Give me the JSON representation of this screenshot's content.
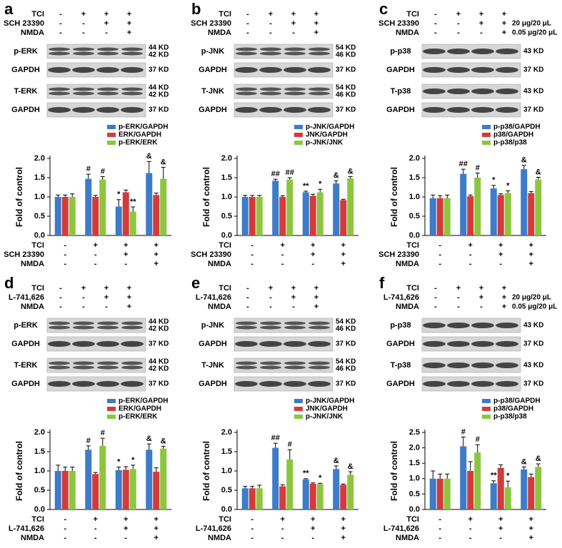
{
  "chart_data": [
    {
      "type": "bar",
      "panel": "a",
      "y_label": "Fold of control",
      "treatments": [
        {
          "name": "TCI",
          "signs": [
            "-",
            "+",
            "+",
            "+"
          ]
        },
        {
          "name": "SCH 23390",
          "signs": [
            "-",
            "-",
            "+",
            "+"
          ]
        },
        {
          "name": "NMDA",
          "signs": [
            "-",
            "-",
            "-",
            "+"
          ]
        }
      ],
      "blots": [
        {
          "label": "p-ERK",
          "kd": [
            "44 KD",
            "42 KD"
          ]
        },
        {
          "label": "GAPDH",
          "kd": [
            "37 KD"
          ]
        },
        {
          "label": "T-ERK",
          "kd": [
            "44 KD",
            "42 KD"
          ]
        },
        {
          "label": "GAPDH",
          "kd": [
            "37 KD"
          ]
        }
      ],
      "ylim": [
        0,
        2
      ],
      "yticks": [
        {
          "value": 0,
          "label": "0.0"
        },
        {
          "value": 0.5,
          "label": "0.5"
        },
        {
          "value": 1,
          "label": "1.0"
        },
        {
          "value": 1.5,
          "label": "1.5"
        },
        {
          "value": 2,
          "label": "2.0"
        }
      ],
      "series": [
        {
          "name": "p-ERK/GAPDH",
          "color": "#3d7cc9",
          "values": [
            1.0,
            1.47,
            0.75,
            1.62
          ],
          "errors": [
            0.05,
            0.12,
            0.18,
            0.3
          ],
          "markers": [
            null,
            "#",
            "*",
            "&"
          ]
        },
        {
          "name": "ERK/GAPDH",
          "color": "#d33b3b",
          "values": [
            1.0,
            1.0,
            1.12,
            1.05
          ],
          "errors": [
            0.05,
            0.04,
            0.06,
            0.05
          ],
          "markers": [
            null,
            null,
            null,
            null
          ]
        },
        {
          "name": "p-ERK/ERK",
          "color": "#8cc63f",
          "values": [
            1.0,
            1.45,
            0.62,
            1.47
          ],
          "errors": [
            0.08,
            0.08,
            0.12,
            0.3
          ],
          "markers": [
            null,
            "#",
            "**",
            "&"
          ]
        }
      ]
    },
    {
      "type": "bar",
      "panel": "b",
      "y_label": "Fold of control",
      "treatments": [
        {
          "name": "TCI",
          "signs": [
            "-",
            "+",
            "+",
            "+"
          ]
        },
        {
          "name": "SCH 23390",
          "signs": [
            "-",
            "-",
            "+",
            "+"
          ]
        },
        {
          "name": "NMDA",
          "signs": [
            "-",
            "-",
            "-",
            "+"
          ]
        }
      ],
      "blots": [
        {
          "label": "p-JNK",
          "kd": [
            "54 KD",
            "46 KD"
          ]
        },
        {
          "label": "GAPDH",
          "kd": [
            "37 KD"
          ]
        },
        {
          "label": "T-JNK",
          "kd": [
            "54 KD",
            "46 KD"
          ]
        },
        {
          "label": "GAPDH",
          "kd": [
            "37 KD"
          ]
        }
      ],
      "ylim": [
        0,
        2
      ],
      "yticks": [
        {
          "value": 0,
          "label": "0.0"
        },
        {
          "value": 0.5,
          "label": "0.5"
        },
        {
          "value": 1,
          "label": "1.0"
        },
        {
          "value": 1.5,
          "label": "1.5"
        },
        {
          "value": 2,
          "label": "2.0"
        }
      ],
      "series": [
        {
          "name": "p-JNK/GAPDH",
          "color": "#3d7cc9",
          "values": [
            1.0,
            1.42,
            1.12,
            1.35
          ],
          "errors": [
            0.04,
            0.04,
            0.03,
            0.07
          ],
          "markers": [
            null,
            "##",
            "**",
            "&"
          ]
        },
        {
          "name": "JNK/GAPDH",
          "color": "#d33b3b",
          "values": [
            1.0,
            1.0,
            1.03,
            0.92
          ],
          "errors": [
            0.04,
            0.03,
            0.04,
            0.02
          ],
          "markers": [
            null,
            null,
            null,
            null
          ]
        },
        {
          "name": "p-JNK/JNK",
          "color": "#8cc63f",
          "values": [
            1.0,
            1.45,
            1.12,
            1.48
          ],
          "errors": [
            0.04,
            0.05,
            0.08,
            0.05
          ],
          "markers": [
            null,
            "##",
            "*",
            "&"
          ]
        }
      ]
    },
    {
      "type": "bar",
      "panel": "c",
      "y_label": "Fold of control",
      "doses": [
        "20 μg/20 μL",
        "0.05 μg/20 μL"
      ],
      "treatments": [
        {
          "name": "TCI",
          "signs": [
            "-",
            "+",
            "+",
            "+"
          ]
        },
        {
          "name": "SCH 23390",
          "signs": [
            "-",
            "-",
            "+",
            "+"
          ]
        },
        {
          "name": "NMDA",
          "signs": [
            "-",
            "-",
            "-",
            "+"
          ]
        }
      ],
      "blots": [
        {
          "label": "p-p38",
          "kd": [
            "43 KD"
          ]
        },
        {
          "label": "GAPDH",
          "kd": [
            "37 KD"
          ]
        },
        {
          "label": "T-p38",
          "kd": [
            "43 KD"
          ]
        },
        {
          "label": "GAPDH",
          "kd": [
            "37 KD"
          ]
        }
      ],
      "ylim": [
        0,
        2
      ],
      "yticks": [
        {
          "value": 0,
          "label": "0.0"
        },
        {
          "value": 0.5,
          "label": "0.5"
        },
        {
          "value": 1,
          "label": "1.0"
        },
        {
          "value": 1.5,
          "label": "1.5"
        },
        {
          "value": 2,
          "label": "2.0"
        }
      ],
      "series": [
        {
          "name": "p-p38/GAPDH",
          "color": "#3d7cc9",
          "values": [
            0.97,
            1.6,
            1.22,
            1.72
          ],
          "errors": [
            0.08,
            0.12,
            0.08,
            0.1
          ],
          "markers": [
            null,
            "##",
            "*",
            "&"
          ]
        },
        {
          "name": "p38/GAPDH",
          "color": "#d33b3b",
          "values": [
            0.97,
            1.02,
            1.05,
            1.1
          ],
          "errors": [
            0.06,
            0.03,
            0.03,
            0.04
          ],
          "markers": [
            null,
            null,
            null,
            null
          ]
        },
        {
          "name": "p-p38/p38",
          "color": "#8cc63f",
          "values": [
            0.97,
            1.5,
            1.1,
            1.45
          ],
          "errors": [
            0.08,
            0.12,
            0.06,
            0.06
          ],
          "markers": [
            null,
            "#",
            "*",
            "&"
          ]
        }
      ]
    },
    {
      "type": "bar",
      "panel": "d",
      "y_label": "Fold of control",
      "treatments": [
        {
          "name": "TCI",
          "signs": [
            "-",
            "+",
            "+",
            "+"
          ]
        },
        {
          "name": "L-741,626",
          "signs": [
            "-",
            "-",
            "+",
            "+"
          ]
        },
        {
          "name": "NMDA",
          "signs": [
            "-",
            "-",
            "-",
            "+"
          ]
        }
      ],
      "blots": [
        {
          "label": "p-ERK",
          "kd": [
            "44 KD",
            "42 KD"
          ]
        },
        {
          "label": "GAPDH",
          "kd": [
            "37 KD"
          ]
        },
        {
          "label": "T-ERK",
          "kd": [
            "44 KD",
            "42 KD"
          ]
        },
        {
          "label": "GAPDH",
          "kd": [
            "37 KD"
          ]
        }
      ],
      "ylim": [
        0,
        2
      ],
      "yticks": [
        {
          "value": 0,
          "label": "0.0"
        },
        {
          "value": 0.5,
          "label": "0.5"
        },
        {
          "value": 1,
          "label": "1.0"
        },
        {
          "value": 1.5,
          "label": "1.5"
        },
        {
          "value": 2,
          "label": "2.0"
        }
      ],
      "series": [
        {
          "name": "p-ERK/GAPDH",
          "color": "#3d7cc9",
          "values": [
            1.0,
            1.55,
            1.02,
            1.55
          ],
          "errors": [
            0.15,
            0.1,
            0.08,
            0.15
          ],
          "markers": [
            null,
            "#",
            "*",
            "&"
          ]
        },
        {
          "name": "ERK/GAPDH",
          "color": "#d33b3b",
          "values": [
            1.0,
            0.92,
            1.03,
            0.98
          ],
          "errors": [
            0.1,
            0.04,
            0.08,
            0.1
          ],
          "markers": [
            null,
            null,
            null,
            null
          ]
        },
        {
          "name": "p-ERK/ERK",
          "color": "#8cc63f",
          "values": [
            1.0,
            1.65,
            1.05,
            1.58
          ],
          "errors": [
            0.1,
            0.2,
            0.1,
            0.06
          ],
          "markers": [
            null,
            "#",
            "*",
            "&"
          ]
        }
      ]
    },
    {
      "type": "bar",
      "panel": "e",
      "y_label": "Fold of control",
      "treatments": [
        {
          "name": "TCI",
          "signs": [
            "-",
            "+",
            "+",
            "+"
          ]
        },
        {
          "name": "L-741,626",
          "signs": [
            "-",
            "-",
            "+",
            "+"
          ]
        },
        {
          "name": "NMDA",
          "signs": [
            "-",
            "-",
            "-",
            "+"
          ]
        }
      ],
      "blots": [
        {
          "label": "p-JNK",
          "kd": [
            "54 KD",
            "46 KD"
          ]
        },
        {
          "label": "GAPDH",
          "kd": [
            "37 KD"
          ]
        },
        {
          "label": "T-JNK",
          "kd": [
            "54 KD",
            "46 KD"
          ]
        },
        {
          "label": "GAPDH",
          "kd": [
            "37 KD"
          ]
        }
      ],
      "ylim": [
        0,
        2
      ],
      "yticks": [
        {
          "value": 0,
          "label": "0.0"
        },
        {
          "value": 0.5,
          "label": "0.5"
        },
        {
          "value": 1,
          "label": "1.0"
        },
        {
          "value": 1.5,
          "label": "1.5"
        },
        {
          "value": 2,
          "label": "2.0"
        }
      ],
      "series": [
        {
          "name": "p-JNK/GAPDH",
          "color": "#3d7cc9",
          "values": [
            0.55,
            1.6,
            0.78,
            1.05
          ],
          "errors": [
            0.05,
            0.12,
            0.02,
            0.08
          ],
          "markers": [
            null,
            "##",
            "**",
            "&"
          ]
        },
        {
          "name": "JNK/GAPDH",
          "color": "#d33b3b",
          "values": [
            0.55,
            0.6,
            0.67,
            0.64
          ],
          "errors": [
            0.05,
            0.04,
            0.02,
            0.02
          ],
          "markers": [
            null,
            null,
            null,
            null
          ]
        },
        {
          "name": "p-JNK/JNK",
          "color": "#8cc63f",
          "values": [
            0.55,
            1.3,
            0.66,
            0.9
          ],
          "errors": [
            0.08,
            0.25,
            0.02,
            0.08
          ],
          "markers": [
            null,
            "#",
            "*",
            "&"
          ]
        }
      ]
    },
    {
      "type": "bar",
      "panel": "f",
      "y_label": "Fold of control",
      "doses": [
        "20 μg/20 μL",
        "0.05 μg/20 μL"
      ],
      "treatments": [
        {
          "name": "TCI",
          "signs": [
            "-",
            "+",
            "+",
            "+"
          ]
        },
        {
          "name": "L-741,626",
          "signs": [
            "-",
            "-",
            "+",
            "+"
          ]
        },
        {
          "name": "NMDA",
          "signs": [
            "-",
            "-",
            "-",
            "+"
          ]
        }
      ],
      "blots": [
        {
          "label": "p-p38",
          "kd": [
            "43 KD"
          ]
        },
        {
          "label": "GAPDH",
          "kd": [
            "37 KD"
          ]
        },
        {
          "label": "T-p38",
          "kd": [
            "43 KD"
          ]
        },
        {
          "label": "GAPDH",
          "kd": [
            "37 KD"
          ]
        }
      ],
      "ylim": [
        0,
        2.5
      ],
      "yticks": [
        {
          "value": 0,
          "label": "0.0"
        },
        {
          "value": 0.5,
          "label": "0.5"
        },
        {
          "value": 1,
          "label": "1.0"
        },
        {
          "value": 1.5,
          "label": "1.5"
        },
        {
          "value": 2,
          "label": "2.0"
        },
        {
          "value": 2.5,
          "label": "2.5"
        }
      ],
      "series": [
        {
          "name": "p-p38/GAPDH",
          "color": "#3d7cc9",
          "values": [
            1.0,
            2.05,
            0.85,
            1.3
          ],
          "errors": [
            0.25,
            0.3,
            0.08,
            0.08
          ],
          "markers": [
            null,
            "#",
            "**",
            "&"
          ]
        },
        {
          "name": "p38/GAPDH",
          "color": "#d33b3b",
          "values": [
            1.0,
            1.25,
            1.35,
            1.05
          ],
          "errors": [
            0.15,
            0.3,
            0.1,
            0.1
          ],
          "markers": [
            null,
            null,
            null,
            null
          ]
        },
        {
          "name": "p-p38/p38",
          "color": "#8cc63f",
          "values": [
            1.0,
            1.85,
            0.72,
            1.38
          ],
          "errors": [
            0.15,
            0.25,
            0.2,
            0.1
          ],
          "markers": [
            null,
            "#",
            "*",
            "&"
          ]
        }
      ]
    }
  ]
}
